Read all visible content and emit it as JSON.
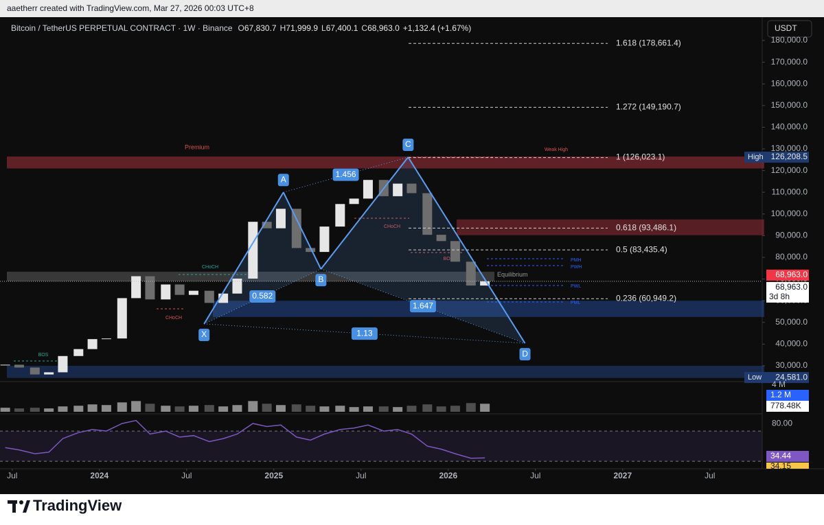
{
  "header": {
    "attribution": "aaetherr created with TradingView.com, Mar 27, 2026 00:03 UTC+8"
  },
  "legend": {
    "symbol": "Bitcoin / TetherUS PERPETUAL CONTRACT · 1W · Binance",
    "ohlc": [
      {
        "key": "O",
        "value": "67,830.7"
      },
      {
        "key": "H",
        "value": "71,999.9"
      },
      {
        "key": "L",
        "value": "67,400.1"
      },
      {
        "key": "C",
        "value": "68,963.0"
      }
    ],
    "change": "+1,132.4 (+1.67%)"
  },
  "currency": "USDT",
  "chart_data": {
    "type": "candlestick",
    "x": [
      2023.46,
      2023.54,
      2023.63,
      2023.71,
      2023.79,
      2023.88,
      2023.96,
      2024.04,
      2024.13,
      2024.21,
      2024.29,
      2024.38,
      2024.46,
      2024.54,
      2024.63,
      2024.71,
      2024.79,
      2024.88,
      2024.96,
      2025.04,
      2025.13,
      2025.21,
      2025.29,
      2025.38,
      2025.46,
      2025.54,
      2025.63,
      2025.71,
      2025.79,
      2025.88,
      2025.96,
      2026.04,
      2026.13,
      2026.21
    ],
    "values": [
      30500,
      29200,
      26000,
      27000,
      34500,
      37700,
      42300,
      42600,
      61200,
      71300,
      60600,
      67500,
      62700,
      64600,
      59000,
      63300,
      70200,
      96400,
      93400,
      102400,
      84300,
      82500,
      94200,
      104600,
      107100,
      115700,
      108200,
      114000,
      109600,
      90400,
      87500,
      78000,
      67000,
      68963
    ],
    "up_color": "#e6e6e6",
    "down_color": "#6e6e6e",
    "xlim": [
      2023.43,
      2027.8
    ],
    "ylim": [
      23040,
      187280
    ],
    "xticks": [
      {
        "value": 2023.5,
        "label": "Jul"
      },
      2024,
      {
        "value": 2024.5,
        "label": "Jul"
      },
      2025,
      {
        "value": 2025.5,
        "label": "Jul"
      },
      2026,
      {
        "value": 2026.5,
        "label": "Jul"
      },
      2027,
      {
        "value": 2027.5,
        "label": "Jul"
      }
    ],
    "yticks": [
      {
        "value": 30000,
        "label": "30,000.0"
      },
      {
        "value": 40000,
        "label": "40,000.0"
      },
      {
        "value": 50000,
        "label": "50,000.0"
      },
      {
        "value": 60000,
        "label": "60,000.0"
      },
      {
        "value": 70000,
        "label": "70,000.0"
      },
      {
        "value": 80000,
        "label": "80,000.0"
      },
      {
        "value": 90000,
        "label": "90,000.0"
      },
      {
        "value": 100000,
        "label": "100,000.0"
      },
      {
        "value": 110000,
        "label": "110,000.0"
      },
      {
        "value": 120000,
        "label": "120,000.0"
      },
      {
        "value": 130000,
        "label": "130,000.0"
      },
      {
        "value": 140000,
        "label": "140,000.0"
      },
      {
        "value": 150000,
        "label": "150,000.0"
      },
      {
        "value": 160000,
        "label": "160,000.0"
      },
      {
        "value": 170000,
        "label": "170,000.0"
      },
      {
        "value": 180000,
        "label": "180,000.0"
      }
    ],
    "high": {
      "name": "High",
      "value": 126208.5,
      "label": "126,208.5"
    },
    "low": {
      "name": "Low",
      "value": 24581,
      "label": "24,581.0"
    },
    "last": {
      "value": 68963,
      "label": "68,963.0",
      "countdown": "3d 8h"
    },
    "fib_levels": [
      {
        "value": 178661.4,
        "label": "1.618 (178,661.4)"
      },
      {
        "value": 149190.7,
        "label": "1.272 (149,190.7)"
      },
      {
        "value": 126023.1,
        "label": "1 (126,023.1)"
      },
      {
        "value": 93486.1,
        "label": "0.618 (93,486.1)"
      },
      {
        "value": 83435.4,
        "label": "0.5 (83,435.4)"
      },
      {
        "value": 60949.2,
        "label": "0.236 (60,949.2)"
      }
    ],
    "pattern": {
      "points": [
        {
          "label": "X",
          "x": 2024.6,
          "value": 49300
        },
        {
          "label": "A",
          "x": 2025.055,
          "value": 110000
        },
        {
          "label": "B",
          "x": 2025.27,
          "value": 74600
        },
        {
          "label": "C",
          "x": 2025.77,
          "value": 126208
        },
        {
          "label": "D",
          "x": 2026.44,
          "value": 40400
        }
      ],
      "ratios": [
        0.582,
        1.456,
        1.647,
        1.13
      ],
      "color": "#5b9cf0"
    },
    "zones": [
      {
        "label": "Premium",
        "top": 126500,
        "bottom": 121000,
        "color": "#b2333f"
      },
      {
        "top": 97500,
        "bottom": 90200,
        "color": "#b2333f"
      },
      {
        "label": "Equilibrium",
        "top": 73400,
        "bottom": 69000,
        "color": "#8a8a8a"
      },
      {
        "top": 60000,
        "bottom": 52500,
        "color": "#2a5cc0"
      },
      {
        "top": 30000,
        "bottom": 24400,
        "color": "#2a5cc0"
      }
    ],
    "annotations": [
      "Weak High",
      "CHoCH",
      "CHoCH",
      "CHoCH",
      "BOS",
      "BOS",
      "PMH",
      "PWH",
      "PWL",
      "PML"
    ],
    "volume": {
      "values": [
        0.6,
        0.5,
        0.6,
        0.5,
        0.8,
        0.9,
        1.1,
        1.0,
        1.4,
        1.6,
        1.2,
        0.9,
        0.8,
        0.9,
        1.0,
        0.8,
        1.0,
        1.6,
        1.2,
        1.0,
        1.1,
        0.9,
        0.8,
        0.9,
        0.7,
        0.8,
        0.8,
        0.7,
        0.9,
        1.1,
        0.8,
        0.9,
        1.3,
        1.2
      ],
      "ylim": [
        0,
        4.3
      ],
      "ticks": [
        {
          "value": 4,
          "label": "4 M"
        }
      ],
      "current": {
        "value": 1.2,
        "label": "1.2 M"
      },
      "average": {
        "value": 0.77848,
        "label": "778.48K"
      }
    },
    "rsi": {
      "values": [
        48,
        45,
        40,
        42,
        60,
        68,
        72,
        70,
        80,
        84,
        66,
        70,
        62,
        64,
        56,
        60,
        66,
        80,
        76,
        78,
        62,
        58,
        66,
        72,
        74,
        78,
        70,
        72,
        66,
        50,
        46,
        40,
        34,
        34.44
      ],
      "ylim": [
        21,
        91
      ],
      "bands": [
        70,
        30
      ],
      "ticks": [
        {
          "value": 80,
          "label": "80.00"
        }
      ],
      "color": "#7e57c2",
      "current": 34.44,
      "ma": 34.15
    }
  },
  "footer": {
    "brand": "TradingView"
  }
}
